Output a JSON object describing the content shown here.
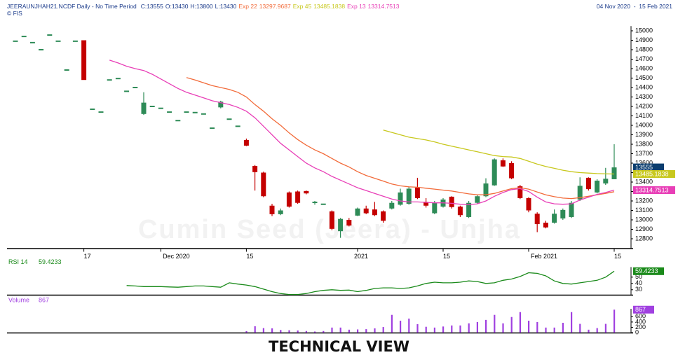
{
  "header": {
    "copyright": "© FIS",
    "date_range": "04 Nov 2020  -  15 Feb 2021"
  },
  "chart_data": [
    {
      "type": "candlestick",
      "title": "JEERAUNJHAH21.NCDF Daily - No Time Period",
      "watermark": "Cumin Seed (Jeera) - Unjha",
      "quote_labels": {
        "close": "C:",
        "open": "O:",
        "high": "H:",
        "low": "L:"
      },
      "up_color": "#2e8b57",
      "down_color": "#c40000",
      "categories": [
        null,
        null,
        null,
        null,
        null,
        null,
        null,
        null,
        "17",
        null,
        null,
        null,
        null,
        null,
        null,
        null,
        null,
        "Dec 2020",
        null,
        null,
        null,
        null,
        null,
        null,
        null,
        null,
        null,
        "15",
        null,
        null,
        null,
        null,
        null,
        null,
        null,
        null,
        null,
        null,
        null,
        null,
        "2021",
        null,
        null,
        null,
        null,
        null,
        null,
        null,
        null,
        null,
        "15",
        null,
        null,
        null,
        null,
        null,
        null,
        null,
        null,
        null,
        "Feb 2021",
        null,
        null,
        null,
        null,
        null,
        null,
        null,
        null,
        null,
        "15"
      ],
      "open": [
        14890,
        14940,
        14875,
        14800,
        14955,
        14890,
        14585,
        14890,
        14900,
        14170,
        14140,
        14480,
        14495,
        14360,
        14400,
        14120,
        14200,
        14180,
        14140,
        14050,
        14140,
        14135,
        14120,
        13970,
        14190,
        14065,
        13990,
        13845,
        13570,
        13500,
        13150,
        13060,
        13290,
        13300,
        13305,
        13175,
        13165,
        13090,
        12880,
        13000,
        13045,
        13120,
        13110,
        13090,
        13120,
        13160,
        13170,
        13340,
        13190,
        13070,
        13140,
        13245,
        13140,
        13030,
        13180,
        13250,
        13365,
        13630,
        13600,
        13355,
        13230,
        13065,
        12970,
        12970,
        13015,
        13030,
        13215,
        13445,
        13290,
        13385,
        13430
      ],
      "high": [
        14890,
        14940,
        14875,
        14800,
        14955,
        14890,
        14585,
        14890,
        14900,
        14170,
        14140,
        14480,
        14495,
        14360,
        14400,
        14350,
        14200,
        14180,
        14140,
        14050,
        14140,
        14135,
        14120,
        13970,
        14260,
        14065,
        13990,
        13860,
        13580,
        13510,
        13170,
        13120,
        13300,
        13310,
        13310,
        13200,
        13165,
        13100,
        13020,
        13020,
        13130,
        13150,
        13190,
        13100,
        13200,
        13330,
        13350,
        13445,
        13230,
        13200,
        13230,
        13250,
        13150,
        13200,
        13260,
        13440,
        13650,
        13650,
        13620,
        13370,
        13240,
        13080,
        12990,
        13110,
        13120,
        13200,
        13450,
        13450,
        13430,
        13550,
        13800
      ],
      "low": [
        14890,
        14940,
        14875,
        14800,
        14955,
        14890,
        14585,
        14890,
        14480,
        14170,
        14140,
        14480,
        14495,
        14360,
        14400,
        14110,
        14200,
        14180,
        14140,
        14050,
        14140,
        14135,
        14120,
        13970,
        14180,
        14065,
        13990,
        13780,
        13310,
        13240,
        13040,
        13050,
        13130,
        13170,
        13270,
        13160,
        13165,
        12890,
        12810,
        12930,
        13040,
        13060,
        13040,
        12970,
        13110,
        13150,
        13160,
        13220,
        13130,
        13060,
        13130,
        13120,
        13030,
        13020,
        13170,
        13240,
        13360,
        13560,
        13430,
        13220,
        13080,
        12870,
        12910,
        12960,
        13000,
        13020,
        13200,
        13310,
        13280,
        13370,
        13430
      ],
      "close": [
        14890,
        14940,
        14875,
        14800,
        14955,
        14890,
        14585,
        14890,
        14480,
        14170,
        14140,
        14480,
        14495,
        14360,
        14400,
        14240,
        14200,
        14180,
        14140,
        14050,
        14140,
        14135,
        14120,
        13970,
        14250,
        14065,
        13990,
        13785,
        13505,
        13250,
        13060,
        13100,
        13140,
        13180,
        13280,
        13185,
        13165,
        12905,
        13010,
        12940,
        13120,
        13070,
        13050,
        12990,
        13180,
        13290,
        13330,
        13230,
        13150,
        13180,
        13215,
        13135,
        13050,
        13180,
        13250,
        13385,
        13640,
        13565,
        13440,
        13230,
        13100,
        12955,
        12920,
        13065,
        13105,
        13180,
        13360,
        13325,
        13415,
        13435,
        13555
      ],
      "close_color": "#0b3d6e",
      "series": [
        {
          "name": "Exp 22",
          "color": "#f26b3a",
          "values": [
            null,
            null,
            null,
            null,
            null,
            null,
            null,
            null,
            null,
            null,
            null,
            null,
            null,
            null,
            null,
            null,
            null,
            null,
            null,
            null,
            14505,
            14480,
            14450,
            14420,
            14400,
            14380,
            14350,
            14300,
            14220,
            14150,
            14070,
            14000,
            13920,
            13850,
            13790,
            13740,
            13700,
            13650,
            13600,
            13560,
            13510,
            13470,
            13440,
            13410,
            13380,
            13360,
            13350,
            13345,
            13335,
            13325,
            13315,
            13305,
            13290,
            13275,
            13265,
            13265,
            13280,
            13305,
            13330,
            13340,
            13325,
            13295,
            13265,
            13245,
            13230,
            13225,
            13235,
            13250,
            13265,
            13280,
            13297.9687
          ]
        },
        {
          "name": "Exp 45",
          "color": "#c8c81e",
          "values": [
            null,
            null,
            null,
            null,
            null,
            null,
            null,
            null,
            null,
            null,
            null,
            null,
            null,
            null,
            null,
            null,
            null,
            null,
            null,
            null,
            null,
            null,
            null,
            null,
            null,
            null,
            null,
            null,
            null,
            null,
            null,
            null,
            null,
            null,
            null,
            null,
            null,
            null,
            null,
            null,
            null,
            null,
            null,
            13950,
            13925,
            13900,
            13875,
            13860,
            13845,
            13825,
            13800,
            13780,
            13760,
            13740,
            13720,
            13700,
            13680,
            13670,
            13665,
            13650,
            13620,
            13590,
            13565,
            13545,
            13525,
            13510,
            13500,
            13495,
            13490,
            13487,
            13485.1838
          ]
        },
        {
          "name": "Exp 13",
          "color": "#e83fb7",
          "values": [
            null,
            null,
            null,
            null,
            null,
            null,
            null,
            null,
            null,
            null,
            null,
            14690,
            14660,
            14625,
            14600,
            14580,
            14540,
            14490,
            14440,
            14390,
            14350,
            14320,
            14290,
            14260,
            14240,
            14220,
            14190,
            14150,
            14080,
            13990,
            13900,
            13810,
            13740,
            13670,
            13600,
            13550,
            13510,
            13460,
            13420,
            13380,
            13340,
            13310,
            13280,
            13250,
            13220,
            13200,
            13190,
            13190,
            13185,
            13180,
            13180,
            13175,
            13165,
            13160,
            13170,
            13200,
            13250,
            13290,
            13320,
            13330,
            13300,
            13240,
            13190,
            13170,
            13165,
            13170,
            13210,
            13240,
            13270,
            13290,
            13314.7513
          ]
        }
      ],
      "ylim": [
        12700,
        15050
      ],
      "yticks": [
        12800,
        12900,
        13000,
        13100,
        13200,
        13300,
        13400,
        13500,
        13600,
        13700,
        13800,
        13900,
        14000,
        14100,
        14200,
        14300,
        14400,
        14500,
        14600,
        14700,
        14800,
        14900,
        15000
      ]
    },
    {
      "type": "line",
      "series": [
        {
          "name": "RSI 14",
          "color": "#1a8a1a",
          "values": [
            null,
            null,
            null,
            null,
            null,
            null,
            null,
            null,
            null,
            null,
            null,
            null,
            null,
            36.7,
            36,
            35,
            35,
            35,
            34.5,
            34,
            35,
            36,
            36,
            35,
            34,
            41,
            39,
            37.5,
            35,
            31,
            27,
            24,
            22.5,
            22.5,
            24,
            27,
            29,
            30,
            29,
            29.5,
            27,
            29,
            32,
            33,
            33,
            32,
            33,
            36,
            40,
            42,
            41,
            41,
            42,
            44,
            43,
            40,
            41,
            45,
            47,
            51,
            57,
            56,
            52,
            44,
            40,
            39,
            41,
            43,
            45,
            50,
            59.4233
          ]
        }
      ],
      "ylim": [
        22,
        66
      ],
      "yticks": [
        30,
        40,
        50
      ]
    },
    {
      "type": "bar",
      "series": [
        {
          "name": "Volume",
          "color": "#a040e0",
          "values": [
            null,
            null,
            null,
            null,
            null,
            null,
            null,
            null,
            null,
            null,
            null,
            null,
            null,
            null,
            null,
            null,
            null,
            null,
            null,
            null,
            null,
            null,
            null,
            null,
            null,
            null,
            null,
            55,
            240,
            170,
            160,
            100,
            90,
            80,
            60,
            40,
            60,
            190,
            190,
            110,
            120,
            130,
            160,
            210,
            670,
            450,
            530,
            320,
            220,
            190,
            230,
            270,
            270,
            350,
            400,
            480,
            670,
            350,
            590,
            775,
            450,
            400,
            190,
            190,
            370,
            775,
            330,
            110,
            170,
            330,
            867
          ]
        }
      ],
      "ylim": [
        0,
        900
      ],
      "yticks": [
        0,
        200,
        400,
        600
      ]
    }
  ],
  "footer": "TECHNICAL VIEW"
}
